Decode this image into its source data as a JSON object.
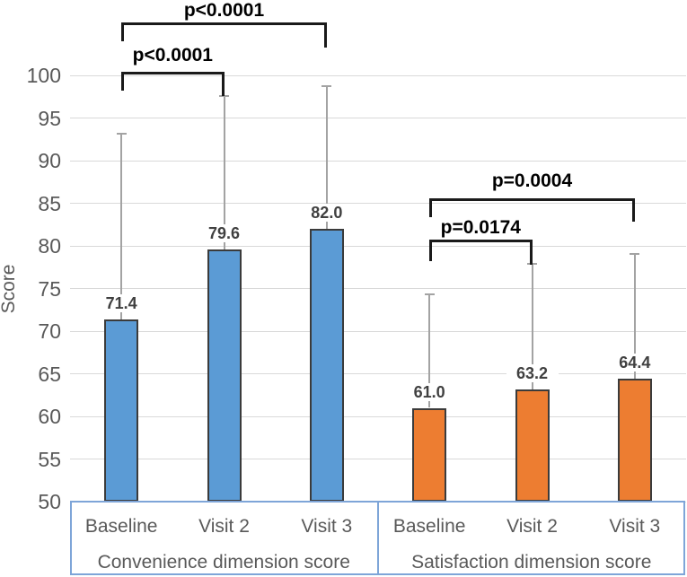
{
  "figure": {
    "y_axis_title": "Score"
  },
  "colors": {
    "convenience_bar": "#5B9BD5",
    "satisfaction_bar": "#ED7D31",
    "bar_border": "#3B3B3B",
    "error_bar": "#A3A3A3",
    "gridline": "#D9D9D9",
    "axis_text": "#595959",
    "data_label": "#404040",
    "p_label": "#000000",
    "axis_box_border": "#7EA5D8"
  },
  "chart_data": {
    "type": "bar",
    "title": "",
    "xlabel": "",
    "ylabel": "Score",
    "ylim": [
      50,
      100
    ],
    "ytick_step": 5,
    "yticks": [
      50,
      55,
      60,
      65,
      70,
      75,
      80,
      85,
      90,
      95,
      100
    ],
    "grid": true,
    "legend": "none",
    "groups": [
      {
        "label": "Convenience dimension score",
        "color": "#5B9BD5",
        "categories": [
          "Baseline",
          "Visit 2",
          "Visit 3"
        ],
        "values": [
          71.4,
          79.6,
          82.0
        ],
        "error_upper": [
          93.2,
          97.6,
          98.7
        ],
        "value_labels": [
          "71.4",
          "79.6",
          "82.0"
        ]
      },
      {
        "label": "Satisfaction dimension score",
        "color": "#ED7D31",
        "categories": [
          "Baseline",
          "Visit 2",
          "Visit 3"
        ],
        "values": [
          61.0,
          63.2,
          64.4
        ],
        "error_upper": [
          74.3,
          77.9,
          79.1
        ],
        "value_labels": [
          "61.0",
          "63.2",
          "64.4"
        ]
      }
    ],
    "significance": [
      {
        "label": "p<0.0001",
        "from_bar": 0,
        "to_bar": 1,
        "comparison": "Convenience Baseline vs Visit 2"
      },
      {
        "label": "p<0.0001",
        "from_bar": 0,
        "to_bar": 2,
        "comparison": "Convenience Baseline vs Visit 3"
      },
      {
        "label": "p=0.0174",
        "from_bar": 3,
        "to_bar": 4,
        "comparison": "Satisfaction Baseline vs Visit 2"
      },
      {
        "label": "p=0.0004",
        "from_bar": 3,
        "to_bar": 5,
        "comparison": "Satisfaction Baseline vs Visit 3"
      }
    ]
  }
}
